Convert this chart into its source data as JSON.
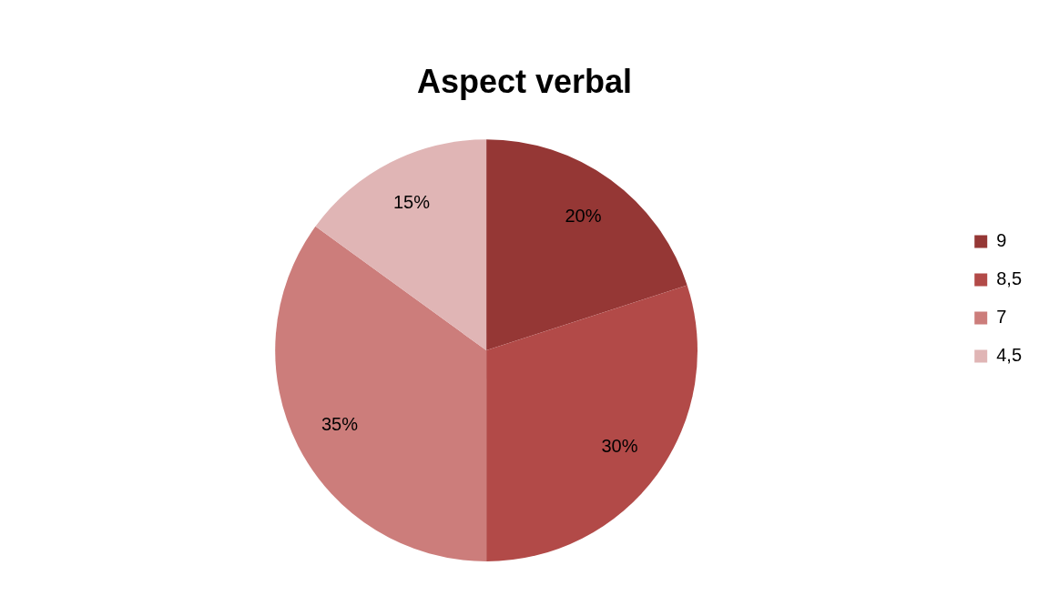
{
  "chart_data": {
    "type": "pie",
    "title": "Aspect verbal",
    "categories": [
      "9",
      "8,5",
      "7",
      "4,5"
    ],
    "values": [
      20,
      30,
      35,
      15
    ],
    "colors": [
      "#953735",
      "#b24a48",
      "#cc7d7b",
      "#e0b5b5"
    ],
    "value_labels": [
      "20%",
      "30%",
      "35%",
      "15%"
    ],
    "legend": "right"
  }
}
